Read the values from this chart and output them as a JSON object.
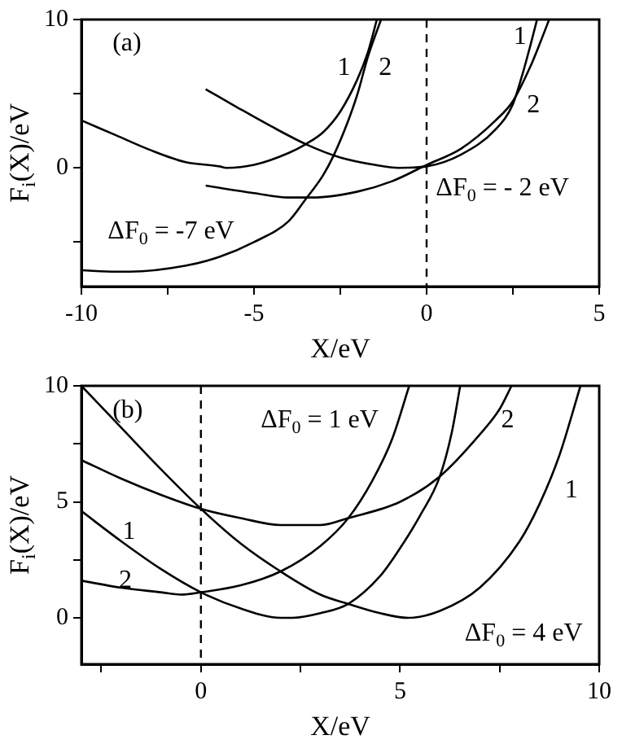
{
  "chart_data": [
    {
      "type": "line",
      "xlabel": "X/eV",
      "ylabel": "F$_{i}$(X)/eV",
      "xlim": [
        -10,
        5
      ],
      "ylim": [
        -8,
        10
      ],
      "xticks": [
        -10,
        {
          "value": -7.5,
          "label": null
        },
        -5,
        {
          "value": -2.5,
          "label": null
        },
        0,
        {
          "value": 2.5,
          "label": null
        },
        5
      ],
      "yticks": [
        {
          "value": -5,
          "label": null
        },
        0,
        {
          "value": 5,
          "label": null
        },
        10
      ],
      "series": [
        {
          "color": "#000000",
          "x": [
            -10,
            -9,
            -8,
            -7,
            -6,
            -5.8,
            -5,
            -4,
            -3.5,
            -3,
            -2.5,
            -2,
            -1.7,
            -1.44
          ],
          "values": [
            3.2,
            2.2,
            1.2,
            0.4,
            0.1,
            0,
            0.2,
            1,
            1.6,
            2.4,
            3.8,
            6,
            7.8,
            10
          ]
        },
        {
          "color": "#000000",
          "x": [
            -10,
            -9,
            -8.6,
            -7,
            -6,
            -5,
            -4,
            -3.5,
            -3,
            -2.7,
            -2.3,
            -2,
            -1.7,
            -1.32
          ],
          "values": [
            -6.9,
            -7,
            -7,
            -6.6,
            -6,
            -5,
            -3.6,
            -2.1,
            -0.5,
            0.8,
            3,
            5,
            7.5,
            10
          ]
        },
        {
          "color": "#000000",
          "x": [
            -6.4,
            -5.5,
            -4.5,
            -3.5,
            -2.5,
            -1.5,
            -0.8,
            0,
            1,
            2,
            2.5,
            2.8,
            3,
            3.2
          ],
          "values": [
            5.3,
            4.1,
            2.8,
            1.6,
            0.7,
            0.2,
            0,
            0.1,
            0.9,
            2.6,
            4.3,
            6.5,
            8.2,
            10
          ]
        },
        {
          "color": "#000000",
          "x": [
            -6.4,
            -5,
            -4,
            -3.3,
            -2,
            -1,
            0,
            1,
            2,
            2.5,
            3,
            3.3,
            3.55
          ],
          "values": [
            -1.2,
            -1.7,
            -2,
            -2,
            -1.6,
            -0.9,
            0.2,
            1.3,
            3.2,
            4.5,
            6.8,
            8.5,
            10
          ]
        }
      ],
      "ref_lines": [
        {
          "axis": "x",
          "value": 0,
          "line_style": "dashed"
        }
      ],
      "annotations": [
        "(a)",
        "1",
        "2",
        "1",
        "2",
        "ΔF$_{0}$ = - 2 eV",
        "ΔF$_{0}$ = -7 eV"
      ]
    },
    {
      "type": "line",
      "xlabel": "X/eV",
      "ylabel": "F$_{i}$(X)/eV",
      "xlim": [
        -3,
        10
      ],
      "ylim": [
        -2,
        10
      ],
      "xticks": [
        {
          "value": -2.5,
          "label": null
        },
        0,
        {
          "value": 2.5,
          "label": null
        },
        5,
        {
          "value": 7.5,
          "label": null
        },
        10
      ],
      "yticks": [
        0,
        {
          "value": 2.5,
          "label": null
        },
        5,
        {
          "value": 7.5,
          "label": null
        },
        10
      ],
      "series": [
        {
          "color": "#000000",
          "x": [
            -3,
            -2,
            -1,
            0,
            1,
            2,
            3,
            3.7,
            4.5,
            5.2,
            6,
            7,
            8,
            8.5,
            9,
            9.53
          ],
          "values": [
            10,
            8.2,
            6.4,
            4.7,
            3.2,
            2,
            1,
            0.6,
            0.2,
            0,
            0.3,
            1.3,
            3.3,
            4.9,
            7,
            10
          ]
        },
        {
          "color": "#000000",
          "x": [
            -3,
            -2,
            -1,
            0,
            1,
            2,
            2.5,
            3,
            3.7,
            5,
            6,
            7,
            7.5,
            7.8
          ],
          "values": [
            6.8,
            6,
            5.3,
            4.7,
            4.3,
            4,
            4,
            4,
            4.3,
            5,
            6.1,
            7.9,
            9,
            10
          ]
        },
        {
          "color": "#000000",
          "x": [
            -3,
            -2,
            -1,
            0,
            1,
            2,
            2.3,
            3,
            3.7,
            4.5,
            5,
            5.5,
            6,
            6.3,
            6.51
          ],
          "values": [
            4.6,
            3.3,
            2.1,
            1.1,
            0.4,
            0,
            0,
            0.2,
            0.6,
            1.8,
            3,
            4.4,
            6.1,
            8,
            10
          ]
        },
        {
          "color": "#000000",
          "x": [
            -3,
            -2,
            -1,
            -0.5,
            0,
            1,
            2,
            3,
            3.7,
            4.3,
            4.8,
            5.23
          ],
          "values": [
            1.6,
            1.3,
            1.1,
            1,
            1.1,
            1.4,
            2,
            3.1,
            4.3,
            5.9,
            7.7,
            10
          ]
        }
      ],
      "ref_lines": [
        {
          "axis": "x",
          "value": 0,
          "line_style": "dashed"
        }
      ],
      "annotations": [
        "(b)",
        "1",
        "2",
        "2",
        "1",
        "ΔF$_{0}$ = 1 eV",
        "ΔF$_{0}$ = 4 eV"
      ]
    }
  ]
}
